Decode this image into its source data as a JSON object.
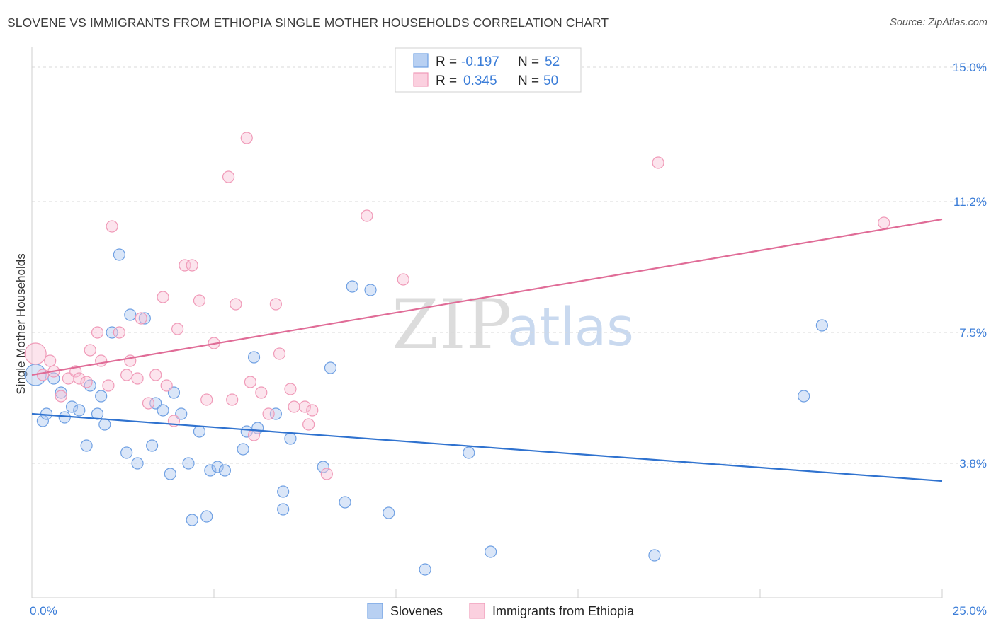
{
  "header": {
    "title": "SLOVENE VS IMMIGRANTS FROM ETHIOPIA SINGLE MOTHER HOUSEHOLDS CORRELATION CHART",
    "source": "Source: ZipAtlas.com"
  },
  "watermark": {
    "zip": "ZIP",
    "atlas": "atlas"
  },
  "legend": {
    "rows": [
      {
        "r_label": "R = ",
        "r_value": "-0.197",
        "n_label": "N = ",
        "n_value": "52"
      },
      {
        "r_label": "R = ",
        "r_value": "0.345",
        "n_label": "N = ",
        "n_value": "50"
      }
    ]
  },
  "bottom_legend": {
    "items": [
      "Slovenes",
      "Immigrants from Ethiopia"
    ]
  },
  "chart_data": {
    "type": "scatter",
    "title": "SLOVENE VS IMMIGRANTS FROM ETHIOPIA SINGLE MOTHER HOUSEHOLDS CORRELATION CHART",
    "xlabel": "",
    "ylabel": "Single Mother Households",
    "xlim": [
      0,
      25
    ],
    "ylim": [
      0,
      15.4
    ],
    "x_tick_labels": [
      "0.0%",
      "25.0%"
    ],
    "y_ticks": [
      3.8,
      7.5,
      11.2,
      15.0
    ],
    "y_tick_labels": [
      "3.8%",
      "7.5%",
      "11.2%",
      "15.0%"
    ],
    "grid": true,
    "legend_position": "top-center",
    "colors": {
      "Slovenes": "#6fa0e3",
      "Immigrants from Ethiopia": "#f09ab8",
      "blue_line": "#2f72cf",
      "pink_line": "#e06c97"
    },
    "series": [
      {
        "name": "Slovenes",
        "trend": {
          "x": [
            0,
            25
          ],
          "y": [
            5.2,
            3.3
          ]
        },
        "points": [
          [
            0.1,
            6.3
          ],
          [
            0.3,
            5.0
          ],
          [
            0.4,
            5.2
          ],
          [
            0.6,
            6.2
          ],
          [
            0.8,
            5.8
          ],
          [
            0.9,
            5.1
          ],
          [
            1.1,
            5.4
          ],
          [
            1.3,
            5.3
          ],
          [
            1.5,
            4.3
          ],
          [
            1.6,
            6.0
          ],
          [
            1.8,
            5.2
          ],
          [
            1.9,
            5.7
          ],
          [
            2.0,
            4.9
          ],
          [
            2.2,
            7.5
          ],
          [
            2.4,
            9.7
          ],
          [
            2.6,
            4.1
          ],
          [
            2.7,
            8.0
          ],
          [
            2.9,
            3.8
          ],
          [
            3.1,
            7.9
          ],
          [
            3.3,
            4.3
          ],
          [
            3.4,
            5.5
          ],
          [
            3.6,
            5.3
          ],
          [
            3.8,
            3.5
          ],
          [
            3.9,
            5.8
          ],
          [
            4.1,
            5.2
          ],
          [
            4.3,
            3.8
          ],
          [
            4.4,
            2.2
          ],
          [
            4.6,
            4.7
          ],
          [
            4.8,
            2.3
          ],
          [
            4.9,
            3.6
          ],
          [
            5.1,
            3.7
          ],
          [
            5.3,
            3.6
          ],
          [
            5.8,
            4.2
          ],
          [
            5.9,
            4.7
          ],
          [
            6.1,
            6.8
          ],
          [
            6.2,
            4.8
          ],
          [
            6.7,
            5.2
          ],
          [
            6.9,
            3.0
          ],
          [
            6.9,
            2.5
          ],
          [
            7.1,
            4.5
          ],
          [
            8.0,
            3.7
          ],
          [
            8.2,
            6.5
          ],
          [
            8.6,
            2.7
          ],
          [
            8.8,
            8.8
          ],
          [
            9.3,
            8.7
          ],
          [
            9.8,
            2.4
          ],
          [
            10.8,
            0.8
          ],
          [
            12.0,
            4.1
          ],
          [
            12.6,
            1.3
          ],
          [
            17.1,
            1.2
          ],
          [
            21.2,
            5.7
          ],
          [
            21.7,
            7.7
          ]
        ]
      },
      {
        "name": "Immigrants from Ethiopia",
        "trend": {
          "x": [
            0,
            25
          ],
          "y": [
            6.3,
            10.7
          ]
        },
        "points": [
          [
            0.1,
            6.9
          ],
          [
            0.3,
            6.3
          ],
          [
            0.5,
            6.7
          ],
          [
            0.6,
            6.4
          ],
          [
            0.8,
            5.7
          ],
          [
            1.0,
            6.2
          ],
          [
            1.2,
            6.4
          ],
          [
            1.3,
            6.2
          ],
          [
            1.5,
            6.1
          ],
          [
            1.6,
            7.0
          ],
          [
            1.8,
            7.5
          ],
          [
            1.9,
            6.7
          ],
          [
            2.1,
            6.0
          ],
          [
            2.2,
            10.5
          ],
          [
            2.4,
            7.5
          ],
          [
            2.6,
            6.3
          ],
          [
            2.7,
            6.7
          ],
          [
            2.9,
            6.2
          ],
          [
            3.0,
            7.9
          ],
          [
            3.2,
            5.5
          ],
          [
            3.4,
            6.3
          ],
          [
            3.6,
            8.5
          ],
          [
            3.7,
            6.0
          ],
          [
            3.9,
            5.0
          ],
          [
            4.0,
            7.6
          ],
          [
            4.2,
            9.4
          ],
          [
            4.4,
            9.4
          ],
          [
            4.6,
            8.4
          ],
          [
            4.8,
            5.6
          ],
          [
            5.0,
            7.2
          ],
          [
            5.4,
            11.9
          ],
          [
            5.5,
            5.6
          ],
          [
            5.6,
            8.3
          ],
          [
            5.9,
            13.0
          ],
          [
            6.0,
            6.1
          ],
          [
            6.1,
            4.6
          ],
          [
            6.3,
            5.8
          ],
          [
            6.5,
            5.2
          ],
          [
            6.7,
            8.3
          ],
          [
            6.8,
            6.9
          ],
          [
            7.1,
            5.9
          ],
          [
            7.2,
            5.4
          ],
          [
            7.5,
            5.4
          ],
          [
            7.6,
            4.9
          ],
          [
            7.7,
            5.3
          ],
          [
            8.1,
            3.5
          ],
          [
            9.2,
            10.8
          ],
          [
            10.2,
            9.0
          ],
          [
            17.2,
            12.3
          ],
          [
            23.4,
            10.6
          ]
        ]
      }
    ]
  }
}
